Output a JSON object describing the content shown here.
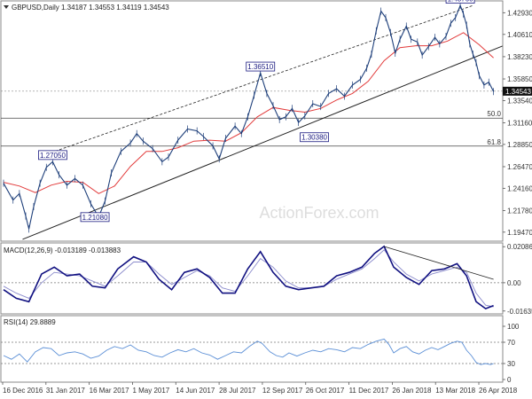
{
  "chart_data": {
    "type": "line",
    "symbol_header": "GBPUSD,Daily  1.34187 1.34553 1.34119 1.34543",
    "watermark": "ActionForex.com",
    "x_labels": [
      "16 Dec 2016",
      "31 Jan 2017",
      "16 Mar 2017",
      "1 May 2017",
      "14 Jun 2017",
      "28 Jul 2017",
      "12 Sep 2017",
      "26 Oct 2017",
      "11 Dec 2017",
      "26 Jan 2018",
      "13 Mar 2018",
      "26 Apr 2018"
    ],
    "price": {
      "ylim": [
        1.186,
        1.441
      ],
      "y_ticks": [
        "1.42930",
        "1.40610",
        "1.38230",
        "1.35850",
        "1.33540",
        "1.31160",
        "1.28850",
        "1.26470",
        "1.24160",
        "1.21780",
        "1.19470"
      ],
      "current_label": "1.34543",
      "series": [
        {
          "x": 0,
          "y": 1.247
        },
        {
          "x": 6,
          "y": 1.229
        },
        {
          "x": 10,
          "y": 1.236
        },
        {
          "x": 14,
          "y": 1.212
        },
        {
          "x": 16,
          "y": 1.198
        },
        {
          "x": 19,
          "y": 1.222
        },
        {
          "x": 23,
          "y": 1.247
        },
        {
          "x": 27,
          "y": 1.264
        },
        {
          "x": 31,
          "y": 1.27
        },
        {
          "x": 35,
          "y": 1.256
        },
        {
          "x": 40,
          "y": 1.245
        },
        {
          "x": 45,
          "y": 1.252
        },
        {
          "x": 50,
          "y": 1.245
        },
        {
          "x": 55,
          "y": 1.225
        },
        {
          "x": 60,
          "y": 1.211
        },
        {
          "x": 64,
          "y": 1.228
        },
        {
          "x": 68,
          "y": 1.258
        },
        {
          "x": 74,
          "y": 1.281
        },
        {
          "x": 80,
          "y": 1.29
        },
        {
          "x": 84,
          "y": 1.3
        },
        {
          "x": 88,
          "y": 1.292
        },
        {
          "x": 94,
          "y": 1.284
        },
        {
          "x": 100,
          "y": 1.27
        },
        {
          "x": 104,
          "y": 1.275
        },
        {
          "x": 110,
          "y": 1.293
        },
        {
          "x": 116,
          "y": 1.305
        },
        {
          "x": 122,
          "y": 1.303
        },
        {
          "x": 126,
          "y": 1.297
        },
        {
          "x": 132,
          "y": 1.287
        },
        {
          "x": 136,
          "y": 1.273
        },
        {
          "x": 140,
          "y": 1.295
        },
        {
          "x": 146,
          "y": 1.308
        },
        {
          "x": 150,
          "y": 1.3
        },
        {
          "x": 154,
          "y": 1.318
        },
        {
          "x": 158,
          "y": 1.341
        },
        {
          "x": 162,
          "y": 1.365
        },
        {
          "x": 166,
          "y": 1.343
        },
        {
          "x": 170,
          "y": 1.33
        },
        {
          "x": 174,
          "y": 1.315
        },
        {
          "x": 178,
          "y": 1.318
        },
        {
          "x": 182,
          "y": 1.327
        },
        {
          "x": 186,
          "y": 1.312
        },
        {
          "x": 190,
          "y": 1.319
        },
        {
          "x": 195,
          "y": 1.332
        },
        {
          "x": 200,
          "y": 1.329
        },
        {
          "x": 205,
          "y": 1.343
        },
        {
          "x": 210,
          "y": 1.348
        },
        {
          "x": 215,
          "y": 1.34
        },
        {
          "x": 220,
          "y": 1.352
        },
        {
          "x": 225,
          "y": 1.358
        },
        {
          "x": 229,
          "y": 1.37
        },
        {
          "x": 232,
          "y": 1.385
        },
        {
          "x": 235,
          "y": 1.41
        },
        {
          "x": 238,
          "y": 1.431
        },
        {
          "x": 241,
          "y": 1.424
        },
        {
          "x": 244,
          "y": 1.408
        },
        {
          "x": 247,
          "y": 1.386
        },
        {
          "x": 250,
          "y": 1.401
        },
        {
          "x": 254,
          "y": 1.415
        },
        {
          "x": 257,
          "y": 1.401
        },
        {
          "x": 261,
          "y": 1.398
        },
        {
          "x": 264,
          "y": 1.384
        },
        {
          "x": 268,
          "y": 1.393
        },
        {
          "x": 272,
          "y": 1.403
        },
        {
          "x": 275,
          "y": 1.396
        },
        {
          "x": 279,
          "y": 1.404
        },
        {
          "x": 282,
          "y": 1.418
        },
        {
          "x": 285,
          "y": 1.424
        },
        {
          "x": 288,
          "y": 1.437
        },
        {
          "x": 290,
          "y": 1.428
        },
        {
          "x": 292,
          "y": 1.416
        },
        {
          "x": 294,
          "y": 1.396
        },
        {
          "x": 296,
          "y": 1.385
        },
        {
          "x": 298,
          "y": 1.376
        },
        {
          "x": 300,
          "y": 1.362
        },
        {
          "x": 303,
          "y": 1.352
        },
        {
          "x": 306,
          "y": 1.355
        },
        {
          "x": 309,
          "y": 1.345
        }
      ],
      "ema": [
        {
          "x": 0,
          "y": 1.248
        },
        {
          "x": 10,
          "y": 1.244
        },
        {
          "x": 20,
          "y": 1.237
        },
        {
          "x": 30,
          "y": 1.245
        },
        {
          "x": 40,
          "y": 1.249
        },
        {
          "x": 50,
          "y": 1.248
        },
        {
          "x": 60,
          "y": 1.236
        },
        {
          "x": 70,
          "y": 1.244
        },
        {
          "x": 80,
          "y": 1.265
        },
        {
          "x": 90,
          "y": 1.281
        },
        {
          "x": 100,
          "y": 1.281
        },
        {
          "x": 110,
          "y": 1.285
        },
        {
          "x": 120,
          "y": 1.292
        },
        {
          "x": 130,
          "y": 1.293
        },
        {
          "x": 140,
          "y": 1.292
        },
        {
          "x": 150,
          "y": 1.301
        },
        {
          "x": 160,
          "y": 1.318
        },
        {
          "x": 170,
          "y": 1.328
        },
        {
          "x": 180,
          "y": 1.325
        },
        {
          "x": 190,
          "y": 1.323
        },
        {
          "x": 200,
          "y": 1.327
        },
        {
          "x": 210,
          "y": 1.336
        },
        {
          "x": 220,
          "y": 1.343
        },
        {
          "x": 230,
          "y": 1.356
        },
        {
          "x": 240,
          "y": 1.378
        },
        {
          "x": 250,
          "y": 1.392
        },
        {
          "x": 260,
          "y": 1.394
        },
        {
          "x": 270,
          "y": 1.394
        },
        {
          "x": 280,
          "y": 1.399
        },
        {
          "x": 290,
          "y": 1.408
        },
        {
          "x": 300,
          "y": 1.395
        },
        {
          "x": 309,
          "y": 1.381
        }
      ],
      "channel_upper": {
        "x1": 22,
        "y1": 1.275,
        "x2": 296,
        "y2": 1.437
      },
      "channel_lower": {
        "x1": 12,
        "y1": 1.187,
        "x2": 309,
        "y2": 1.388
      },
      "levels": [
        {
          "label": "50.0",
          "y": 1.3166
        },
        {
          "label": "61.8",
          "y": 1.2867
        }
      ],
      "current_line": 1.3454,
      "callouts": [
        {
          "text": "1.27050",
          "x": 31,
          "y": 1.2705,
          "side": "above"
        },
        {
          "text": "1.21080",
          "x": 47,
          "y": 1.2108,
          "side": "right"
        },
        {
          "text": "1.36510",
          "x": 162,
          "y": 1.3651,
          "side": "above"
        },
        {
          "text": "1.30380",
          "x": 196,
          "y": 1.3038,
          "side": "below"
        },
        {
          "text": "1.43760",
          "x": 288,
          "y": 1.4376,
          "side": "above"
        }
      ]
    },
    "macd": {
      "title": "MACD(12,26,9) -0.013189 -0.013883",
      "ylim": [
        -0.0175,
        0.022
      ],
      "y_ticks": [
        "0.020861",
        "0.00",
        "-0.016357"
      ],
      "zero_label": "0.00",
      "line": [
        {
          "x": 0,
          "y": -0.004
        },
        {
          "x": 8,
          "y": -0.009
        },
        {
          "x": 16,
          "y": -0.011
        },
        {
          "x": 24,
          "y": 0.005
        },
        {
          "x": 32,
          "y": 0.009
        },
        {
          "x": 40,
          "y": 0.004
        },
        {
          "x": 48,
          "y": 0.005
        },
        {
          "x": 56,
          "y": -0.002
        },
        {
          "x": 64,
          "y": -0.003
        },
        {
          "x": 72,
          "y": 0.008
        },
        {
          "x": 82,
          "y": 0.015
        },
        {
          "x": 90,
          "y": 0.012
        },
        {
          "x": 98,
          "y": 0.002
        },
        {
          "x": 106,
          "y": -0.004
        },
        {
          "x": 114,
          "y": 0.006
        },
        {
          "x": 122,
          "y": 0.008
        },
        {
          "x": 130,
          "y": 0.003
        },
        {
          "x": 138,
          "y": -0.006
        },
        {
          "x": 146,
          "y": -0.006
        },
        {
          "x": 154,
          "y": 0.008
        },
        {
          "x": 162,
          "y": 0.018
        },
        {
          "x": 170,
          "y": 0.006
        },
        {
          "x": 178,
          "y": -0.002
        },
        {
          "x": 186,
          "y": -0.004
        },
        {
          "x": 194,
          "y": -0.003
        },
        {
          "x": 202,
          "y": -0.002
        },
        {
          "x": 210,
          "y": 0.004
        },
        {
          "x": 218,
          "y": 0.006
        },
        {
          "x": 226,
          "y": 0.009
        },
        {
          "x": 234,
          "y": 0.017
        },
        {
          "x": 240,
          "y": 0.021
        },
        {
          "x": 246,
          "y": 0.009
        },
        {
          "x": 254,
          "y": 0.003
        },
        {
          "x": 262,
          "y": -0.001
        },
        {
          "x": 270,
          "y": 0.007
        },
        {
          "x": 278,
          "y": 0.008
        },
        {
          "x": 286,
          "y": 0.011
        },
        {
          "x": 292,
          "y": 0.004
        },
        {
          "x": 298,
          "y": -0.011
        },
        {
          "x": 304,
          "y": -0.015
        },
        {
          "x": 309,
          "y": -0.0132
        }
      ],
      "signal": [
        {
          "x": 0,
          "y": -0.002
        },
        {
          "x": 8,
          "y": -0.006
        },
        {
          "x": 16,
          "y": -0.009
        },
        {
          "x": 24,
          "y": 0.0
        },
        {
          "x": 32,
          "y": 0.006
        },
        {
          "x": 40,
          "y": 0.005
        },
        {
          "x": 48,
          "y": 0.004
        },
        {
          "x": 56,
          "y": 0.001
        },
        {
          "x": 64,
          "y": -0.002
        },
        {
          "x": 72,
          "y": 0.004
        },
        {
          "x": 82,
          "y": 0.012
        },
        {
          "x": 90,
          "y": 0.012
        },
        {
          "x": 98,
          "y": 0.005
        },
        {
          "x": 106,
          "y": -0.001
        },
        {
          "x": 114,
          "y": 0.003
        },
        {
          "x": 122,
          "y": 0.007
        },
        {
          "x": 130,
          "y": 0.004
        },
        {
          "x": 138,
          "y": -0.003
        },
        {
          "x": 146,
          "y": -0.005
        },
        {
          "x": 154,
          "y": 0.004
        },
        {
          "x": 162,
          "y": 0.014
        },
        {
          "x": 170,
          "y": 0.009
        },
        {
          "x": 178,
          "y": 0.001
        },
        {
          "x": 186,
          "y": -0.003
        },
        {
          "x": 194,
          "y": -0.003
        },
        {
          "x": 202,
          "y": -0.002
        },
        {
          "x": 210,
          "y": 0.002
        },
        {
          "x": 218,
          "y": 0.005
        },
        {
          "x": 226,
          "y": 0.008
        },
        {
          "x": 234,
          "y": 0.014
        },
        {
          "x": 240,
          "y": 0.019
        },
        {
          "x": 246,
          "y": 0.012
        },
        {
          "x": 254,
          "y": 0.005
        },
        {
          "x": 262,
          "y": 0.001
        },
        {
          "x": 270,
          "y": 0.005
        },
        {
          "x": 278,
          "y": 0.007
        },
        {
          "x": 286,
          "y": 0.009
        },
        {
          "x": 292,
          "y": 0.006
        },
        {
          "x": 298,
          "y": -0.006
        },
        {
          "x": 304,
          "y": -0.013
        },
        {
          "x": 309,
          "y": -0.0139
        }
      ],
      "trendline": {
        "x1": 240,
        "y1": 0.021,
        "x2": 309,
        "y2": 0.002
      }
    },
    "rsi": {
      "title": "RSI(14) 29.8889",
      "ylim": [
        0,
        100
      ],
      "y_ticks": [
        {
          "label": "100",
          "v": 100
        },
        {
          "label": "70",
          "v": 70
        },
        {
          "label": "30",
          "v": 30
        },
        {
          "label": "0",
          "v": 0
        }
      ],
      "levels": [
        70,
        30
      ],
      "series": [
        {
          "x": 0,
          "y": 45
        },
        {
          "x": 5,
          "y": 38
        },
        {
          "x": 10,
          "y": 48
        },
        {
          "x": 15,
          "y": 33
        },
        {
          "x": 20,
          "y": 52
        },
        {
          "x": 25,
          "y": 60
        },
        {
          "x": 30,
          "y": 58
        },
        {
          "x": 35,
          "y": 45
        },
        {
          "x": 40,
          "y": 50
        },
        {
          "x": 45,
          "y": 52
        },
        {
          "x": 50,
          "y": 48
        },
        {
          "x": 55,
          "y": 40
        },
        {
          "x": 60,
          "y": 44
        },
        {
          "x": 65,
          "y": 55
        },
        {
          "x": 70,
          "y": 62
        },
        {
          "x": 75,
          "y": 58
        },
        {
          "x": 80,
          "y": 65
        },
        {
          "x": 85,
          "y": 55
        },
        {
          "x": 90,
          "y": 52
        },
        {
          "x": 95,
          "y": 45
        },
        {
          "x": 100,
          "y": 42
        },
        {
          "x": 105,
          "y": 50
        },
        {
          "x": 110,
          "y": 56
        },
        {
          "x": 115,
          "y": 52
        },
        {
          "x": 120,
          "y": 58
        },
        {
          "x": 125,
          "y": 50
        },
        {
          "x": 130,
          "y": 46
        },
        {
          "x": 135,
          "y": 38
        },
        {
          "x": 140,
          "y": 45
        },
        {
          "x": 145,
          "y": 52
        },
        {
          "x": 150,
          "y": 50
        },
        {
          "x": 155,
          "y": 62
        },
        {
          "x": 160,
          "y": 72
        },
        {
          "x": 163,
          "y": 68
        },
        {
          "x": 168,
          "y": 52
        },
        {
          "x": 172,
          "y": 45
        },
        {
          "x": 176,
          "y": 42
        },
        {
          "x": 180,
          "y": 50
        },
        {
          "x": 185,
          "y": 44
        },
        {
          "x": 190,
          "y": 50
        },
        {
          "x": 195,
          "y": 55
        },
        {
          "x": 200,
          "y": 52
        },
        {
          "x": 205,
          "y": 58
        },
        {
          "x": 210,
          "y": 56
        },
        {
          "x": 215,
          "y": 52
        },
        {
          "x": 220,
          "y": 60
        },
        {
          "x": 225,
          "y": 58
        },
        {
          "x": 230,
          "y": 66
        },
        {
          "x": 235,
          "y": 72
        },
        {
          "x": 240,
          "y": 76
        },
        {
          "x": 243,
          "y": 66
        },
        {
          "x": 246,
          "y": 50
        },
        {
          "x": 250,
          "y": 58
        },
        {
          "x": 254,
          "y": 62
        },
        {
          "x": 258,
          "y": 52
        },
        {
          "x": 262,
          "y": 48
        },
        {
          "x": 266,
          "y": 55
        },
        {
          "x": 270,
          "y": 60
        },
        {
          "x": 274,
          "y": 56
        },
        {
          "x": 278,
          "y": 62
        },
        {
          "x": 282,
          "y": 68
        },
        {
          "x": 286,
          "y": 72
        },
        {
          "x": 289,
          "y": 70
        },
        {
          "x": 292,
          "y": 55
        },
        {
          "x": 295,
          "y": 45
        },
        {
          "x": 298,
          "y": 32
        },
        {
          "x": 301,
          "y": 28
        },
        {
          "x": 304,
          "y": 30
        },
        {
          "x": 307,
          "y": 28
        },
        {
          "x": 309,
          "y": 29.9
        }
      ]
    }
  }
}
